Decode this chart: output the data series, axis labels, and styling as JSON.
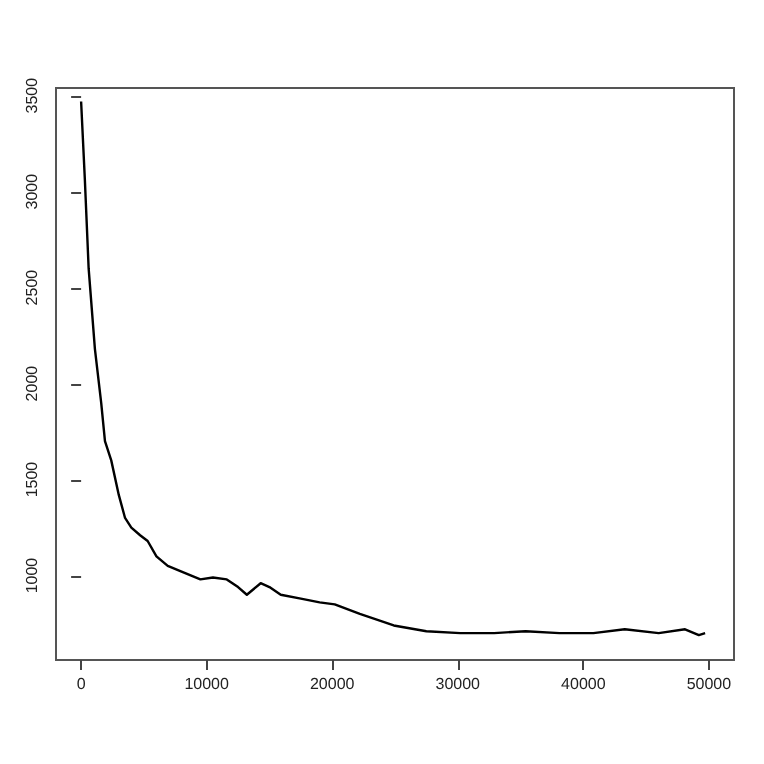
{
  "chart_data": {
    "type": "line",
    "x": [
      0,
      300,
      600,
      1100,
      1600,
      1900,
      2400,
      3000,
      3500,
      4000,
      4700,
      5300,
      6000,
      6900,
      8000,
      9500,
      10500,
      11600,
      12500,
      13200,
      14300,
      15000,
      15900,
      17500,
      19000,
      20200,
      22200,
      24900,
      27500,
      30200,
      32900,
      35400,
      38100,
      40800,
      43300,
      46000,
      48100,
      49200,
      49700
    ],
    "series": [
      {
        "color": "#000000",
        "values": [
          3470,
          3060,
          2600,
          2180,
          1900,
          1700,
          1600,
          1420,
          1300,
          1250,
          1210,
          1180,
          1100,
          1050,
          1020,
          980,
          990,
          980,
          940,
          900,
          960,
          940,
          900,
          880,
          860,
          850,
          800,
          740,
          710,
          700,
          700,
          710,
          700,
          700,
          720,
          700,
          720,
          690,
          700
        ]
      }
    ],
    "xlim": [
      -2000,
      52000
    ],
    "xticks": [
      0,
      10000,
      20000,
      30000,
      40000,
      50000
    ],
    "ylim": [
      560,
      3540
    ],
    "yticks": [
      1000,
      1500,
      2000,
      2500,
      3000,
      3500
    ],
    "grid": false,
    "marker": "none",
    "line_style": "solid"
  }
}
